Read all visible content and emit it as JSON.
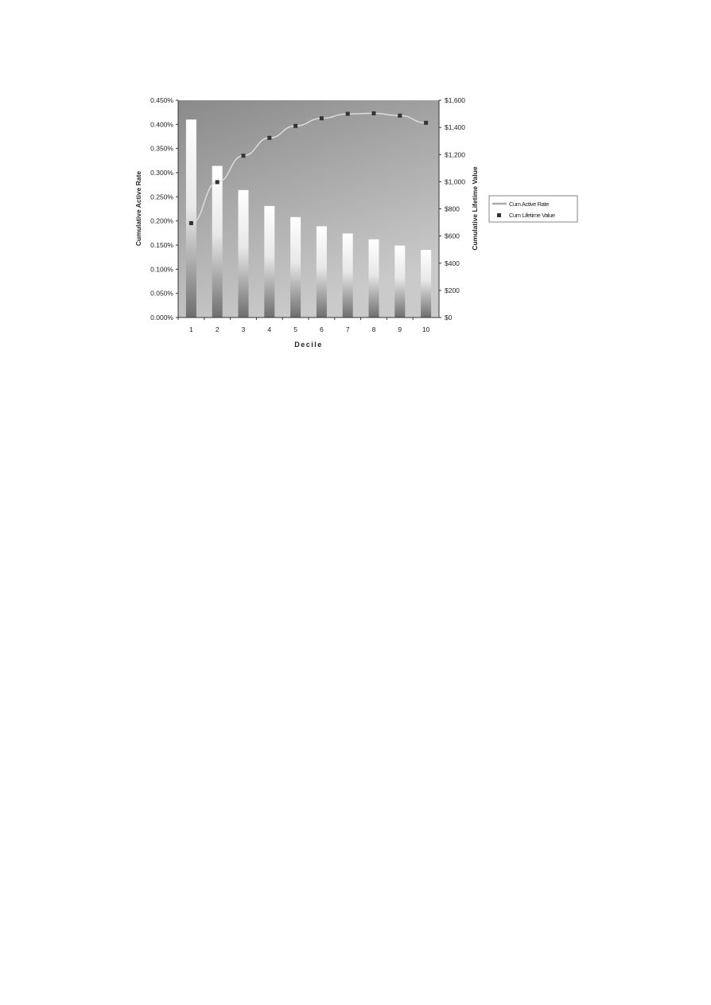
{
  "chart_data": {
    "type": "bar",
    "xlabel": "Decile",
    "ylabel": "Cumulative Active Rate",
    "y2label": "Cumulative Lifetime Value",
    "categories": [
      "1",
      "2",
      "3",
      "4",
      "5",
      "6",
      "7",
      "8",
      "9",
      "10"
    ],
    "ylim": [
      0,
      0.45
    ],
    "yticks": [
      "0.000%",
      "0.050%",
      "0.100%",
      "0.150%",
      "0.200%",
      "0.250%",
      "0.300%",
      "0.350%",
      "0.400%",
      "0.450%"
    ],
    "y2lim": [
      0,
      1600
    ],
    "y2ticks": [
      "$0",
      "$200",
      "$400",
      "$600",
      "$800",
      "$1,000",
      "$1,200",
      "$1,400",
      "$1,600"
    ],
    "grid": false,
    "legend_position": "right",
    "series": [
      {
        "name": "Cum Active Rate",
        "type": "bar",
        "axis": "left",
        "unit": "%",
        "values": [
          0.41,
          0.314,
          0.264,
          0.231,
          0.208,
          0.189,
          0.174,
          0.162,
          0.149,
          0.14
        ]
      },
      {
        "name": "Cum Lifetime Value",
        "type": "line+marker",
        "axis": "right",
        "unit": "$",
        "values": [
          695,
          997,
          1192,
          1323,
          1411,
          1467,
          1500,
          1504,
          1487,
          1434
        ]
      }
    ],
    "colors": {
      "plot_bg_top": "#8a8a8a",
      "plot_bg_bottom": "#c8c8c8",
      "line": "#d8d8d8",
      "marker": "#333333"
    }
  }
}
